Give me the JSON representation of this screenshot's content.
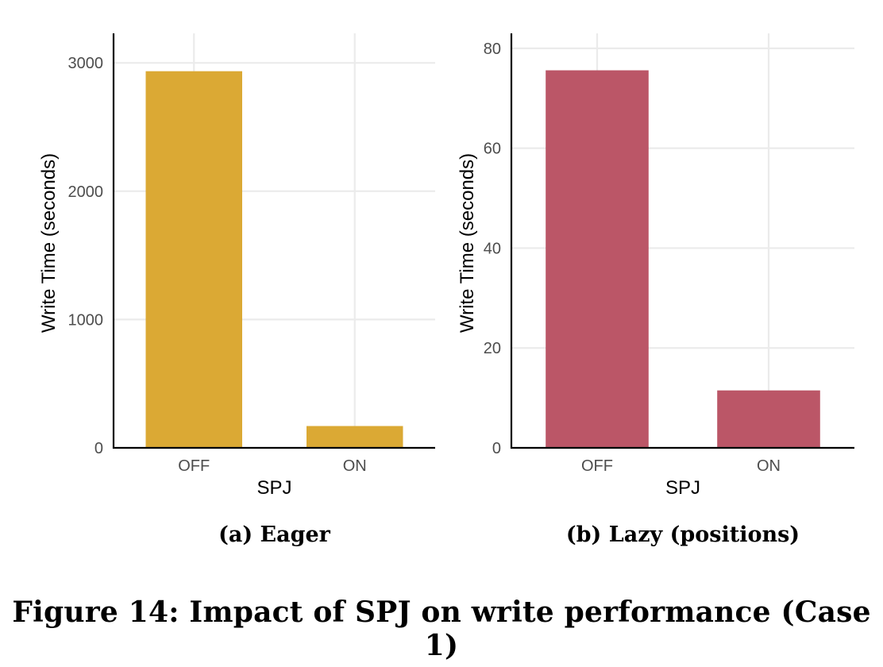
{
  "chart_data": [
    {
      "type": "bar",
      "subcaption": "(a) Eager",
      "xlabel": "SPJ",
      "ylabel": "Write Time (seconds)",
      "categories": [
        "OFF",
        "ON"
      ],
      "values": [
        2935,
        170
      ],
      "ylim": [
        0,
        3230
      ],
      "yticks": [
        0,
        1000,
        2000,
        3000
      ],
      "color": "#DBA934",
      "grid": true
    },
    {
      "type": "bar",
      "subcaption": "(b) Lazy (positions)",
      "xlabel": "SPJ",
      "ylabel": "Write Time (seconds)",
      "categories": [
        "OFF",
        "ON"
      ],
      "values": [
        75.6,
        11.5
      ],
      "ylim": [
        0,
        83
      ],
      "yticks": [
        0,
        20,
        40,
        60,
        80
      ],
      "color": "#BB5667",
      "grid": true
    }
  ],
  "caption": "Figure 14: Impact of SPJ on write performance (Case 1)"
}
